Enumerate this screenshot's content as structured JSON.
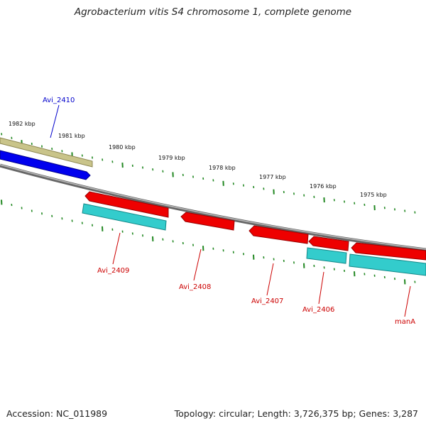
{
  "title": "Agrobacterium vitis S4 chromosome 1, complete genome",
  "footer": {
    "accession": "Accession: NC_011989",
    "info": "Topology: circular; Length: 3,726,375 bp; Genes: 3,287"
  },
  "scale_labels": [
    "1982 kbp",
    "1981 kbp",
    "1980 kbp",
    "1979 kbp",
    "1978 kbp",
    "1977 kbp",
    "1976 kbp",
    "1975 kbp"
  ],
  "genes": [
    {
      "label": "Avi_2410",
      "strand": "forward",
      "type": "CDS",
      "color": "#0000ee",
      "label_color": "#0000cc"
    },
    {
      "label": "Avi_2409",
      "strand": "reverse",
      "type": "CDS",
      "color": "#ee0000",
      "label_color": "#cc0000"
    },
    {
      "label": "Avi_2408",
      "strand": "reverse",
      "type": "CDS",
      "color": "#ee0000",
      "label_color": "#cc0000"
    },
    {
      "label": "Avi_2407",
      "strand": "reverse",
      "type": "CDS",
      "color": "#ee0000",
      "label_color": "#cc0000"
    },
    {
      "label": "Avi_2406",
      "strand": "reverse",
      "type": "CDS",
      "color": "#ee0000",
      "label_color": "#cc0000"
    },
    {
      "label": "manA",
      "strand": "reverse",
      "type": "CDS",
      "color": "#ee0000",
      "label_color": "#cc0000"
    }
  ],
  "colors": {
    "backbone": "#888888",
    "forward_gene_bar": "#c9c48a",
    "reverse_gene_bar": "#33cccc",
    "forward_cds": "#0000ee",
    "reverse_cds": "#ee0000",
    "tick": "#228822"
  }
}
